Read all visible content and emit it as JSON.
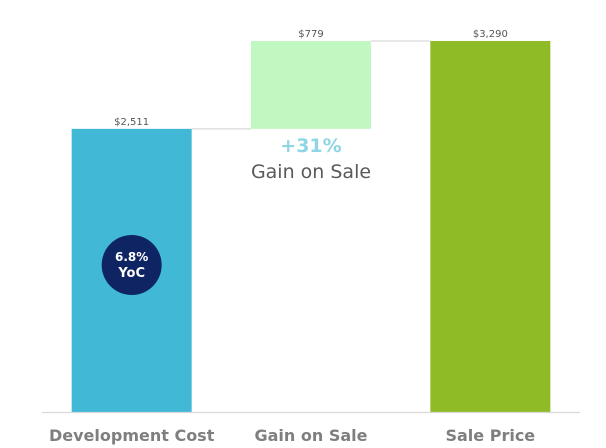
{
  "chart_data": {
    "type": "bar",
    "subtype": "waterfall",
    "categories": [
      "Development Cost",
      "Gain on Sale",
      "Sale Price"
    ],
    "values": [
      2511,
      779,
      3290
    ],
    "value_labels": [
      "$2,511",
      "$779",
      "$3,290"
    ],
    "bar_types": [
      "total",
      "increase",
      "total"
    ],
    "colors": {
      "Development Cost": "#41b8d5",
      "Gain on Sale": "#c1f7c1",
      "Sale Price": "#8fbb26"
    },
    "ylim": [
      0,
      3290
    ],
    "grid": false,
    "legend": "none",
    "annotations": {
      "gain_percent": "+31%",
      "gain_text": "Gain on Sale",
      "gain_percent_color": "#8ed6e6",
      "badge_line1": "6.8%",
      "badge_line2": "YoC",
      "badge_color": "#0e2463",
      "badge_line1_color": "#a9e3f0"
    },
    "connector_color": "#d9d9d9",
    "axis_color": "#d9d9d9"
  }
}
